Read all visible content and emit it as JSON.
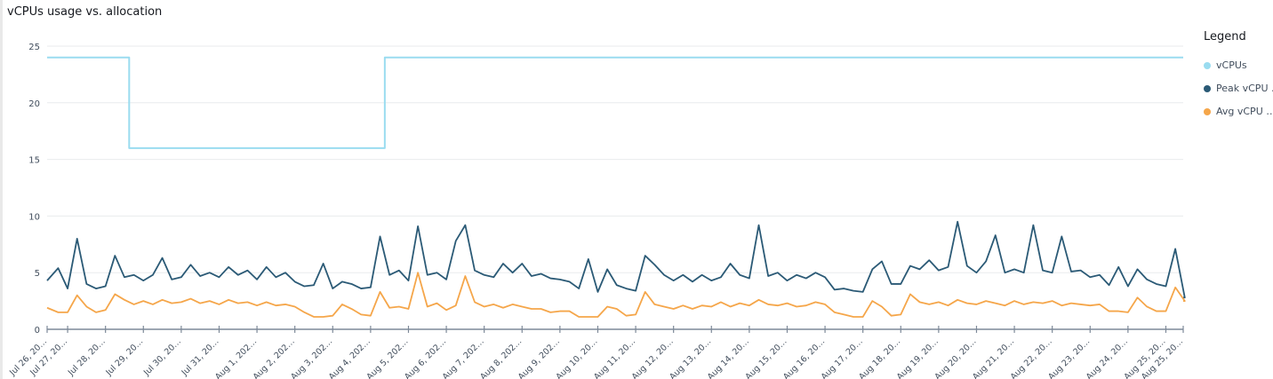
{
  "chart_data": {
    "type": "line",
    "title": "vCPUs usage vs. allocation",
    "xlabel": "",
    "ylabel": "",
    "ylim": [
      0,
      25
    ],
    "yticks": [
      0,
      5,
      10,
      15,
      20,
      25
    ],
    "grid": true,
    "legend": {
      "title": "Legend",
      "placement": "right"
    },
    "xtick_labels": [
      "Jul 26, 20…",
      "Jul 27, 20…",
      "Jul 28, 20…",
      "Jul 29, 20…",
      "Jul 30, 20…",
      "Jul 31, 20…",
      "Aug 1, 202…",
      "Aug 2, 202…",
      "Aug 3, 202…",
      "Aug 4, 202…",
      "Aug 5, 202…",
      "Aug 6, 202…",
      "Aug 7, 202…",
      "Aug 8, 202…",
      "Aug 9, 202…",
      "Aug 10, 20…",
      "Aug 11, 20…",
      "Aug 12, 20…",
      "Aug 13, 20…",
      "Aug 14, 20…",
      "Aug 15, 20…",
      "Aug 16, 20…",
      "Aug 17, 20…",
      "Aug 18, 20…",
      "Aug 19, 20…",
      "Aug 20, 20…",
      "Aug 21, 20…",
      "Aug 22, 20…",
      "Aug 23, 20…",
      "Aug 24, 20…",
      "Aug 25, 20…",
      "Aug 25, 20…"
    ],
    "x": [
      "Jul 26 12:00",
      "Jul 26 18:00",
      "Jul 27 00:00",
      "Jul 27 06:00",
      "Jul 27 12:00",
      "Jul 27 18:00",
      "Jul 28 00:00",
      "Jul 28 06:00",
      "Jul 28 12:00",
      "Jul 28 18:00",
      "Jul 29 00:00",
      "Jul 29 06:00",
      "Jul 29 12:00",
      "Jul 29 18:00",
      "Jul 30 00:00",
      "Jul 30 06:00",
      "Jul 30 12:00",
      "Jul 30 18:00",
      "Jul 31 00:00",
      "Jul 31 06:00",
      "Jul 31 12:00",
      "Jul 31 18:00",
      "Aug 1 00:00",
      "Aug 1 06:00",
      "Aug 1 12:00",
      "Aug 1 18:00",
      "Aug 2 00:00",
      "Aug 2 06:00",
      "Aug 2 12:00",
      "Aug 2 18:00",
      "Aug 3 00:00",
      "Aug 3 06:00",
      "Aug 3 12:00",
      "Aug 3 18:00",
      "Aug 4 00:00",
      "Aug 4 06:00",
      "Aug 4 12:00",
      "Aug 4 18:00",
      "Aug 5 00:00",
      "Aug 5 06:00",
      "Aug 5 12:00",
      "Aug 5 18:00",
      "Aug 6 00:00",
      "Aug 6 06:00",
      "Aug 6 12:00",
      "Aug 6 18:00",
      "Aug 7 00:00",
      "Aug 7 06:00",
      "Aug 7 12:00",
      "Aug 7 18:00",
      "Aug 8 00:00",
      "Aug 8 06:00",
      "Aug 8 12:00",
      "Aug 8 18:00",
      "Aug 9 00:00",
      "Aug 9 06:00",
      "Aug 9 12:00",
      "Aug 9 18:00",
      "Aug 10 00:00",
      "Aug 10 06:00",
      "Aug 10 12:00",
      "Aug 10 18:00",
      "Aug 11 00:00",
      "Aug 11 06:00",
      "Aug 11 12:00",
      "Aug 11 18:00",
      "Aug 12 00:00",
      "Aug 12 06:00",
      "Aug 12 12:00",
      "Aug 12 18:00",
      "Aug 13 00:00",
      "Aug 13 06:00",
      "Aug 13 12:00",
      "Aug 13 18:00",
      "Aug 14 00:00",
      "Aug 14 06:00",
      "Aug 14 12:00",
      "Aug 14 18:00",
      "Aug 15 00:00",
      "Aug 15 06:00",
      "Aug 15 12:00",
      "Aug 15 18:00",
      "Aug 16 00:00",
      "Aug 16 06:00",
      "Aug 16 12:00",
      "Aug 16 18:00",
      "Aug 17 00:00",
      "Aug 17 06:00",
      "Aug 17 12:00",
      "Aug 17 18:00",
      "Aug 18 00:00",
      "Aug 18 06:00",
      "Aug 18 12:00",
      "Aug 18 18:00",
      "Aug 19 00:00",
      "Aug 19 06:00",
      "Aug 19 12:00",
      "Aug 19 18:00",
      "Aug 20 00:00",
      "Aug 20 06:00",
      "Aug 20 12:00",
      "Aug 20 18:00",
      "Aug 21 00:00",
      "Aug 21 06:00",
      "Aug 21 12:00",
      "Aug 21 18:00",
      "Aug 22 00:00",
      "Aug 22 06:00",
      "Aug 22 12:00",
      "Aug 22 18:00",
      "Aug 23 00:00",
      "Aug 23 06:00",
      "Aug 23 12:00",
      "Aug 23 18:00",
      "Aug 24 00:00",
      "Aug 24 06:00",
      "Aug 24 12:00",
      "Aug 24 18:00",
      "Aug 25 00:00",
      "Aug 25 06:00",
      "Aug 25 12:00"
    ],
    "series": [
      {
        "name": "vCPUs",
        "color": "#9adcf0",
        "step": true,
        "values": [
          24,
          24,
          24,
          24,
          24,
          24,
          24,
          24,
          24,
          16,
          16,
          16,
          16,
          16,
          16,
          16,
          16,
          16,
          16,
          16,
          16,
          16,
          16,
          16,
          16,
          16,
          16,
          16,
          16,
          16,
          16,
          16,
          16,
          16,
          16,
          16,
          24,
          24,
          24,
          24,
          24,
          24,
          24,
          24,
          24,
          24,
          24,
          24,
          24,
          24,
          24,
          24,
          24,
          24,
          24,
          24,
          24,
          24,
          24,
          24,
          24,
          24,
          24,
          24,
          24,
          24,
          24,
          24,
          24,
          24,
          24,
          24,
          24,
          24,
          24,
          24,
          24,
          24,
          24,
          24,
          24,
          24,
          24,
          24,
          24,
          24,
          24,
          24,
          24,
          24,
          24,
          24,
          24,
          24,
          24,
          24,
          24,
          24,
          24,
          24,
          24,
          24,
          24,
          24,
          24,
          24,
          24,
          24,
          24,
          24,
          24,
          24,
          24,
          24,
          24,
          24,
          24,
          24,
          24,
          24,
          24
        ]
      },
      {
        "name": "Peak vCPU …",
        "color": "#2b5a76",
        "values": [
          4.3,
          5.4,
          3.6,
          8.0,
          4.0,
          3.6,
          3.8,
          6.5,
          4.6,
          4.8,
          4.3,
          4.8,
          6.3,
          4.4,
          4.6,
          5.7,
          4.7,
          5.0,
          4.6,
          5.5,
          4.8,
          5.2,
          4.4,
          5.5,
          4.6,
          5.0,
          4.2,
          3.8,
          3.9,
          5.8,
          3.6,
          4.2,
          4.0,
          3.6,
          3.7,
          8.2,
          4.8,
          5.2,
          4.3,
          9.1,
          4.8,
          5.0,
          4.4,
          7.8,
          9.2,
          5.2,
          4.8,
          4.6,
          5.8,
          5.0,
          5.8,
          4.7,
          4.9,
          4.5,
          4.4,
          4.2,
          3.6,
          6.2,
          3.3,
          5.3,
          3.9,
          3.6,
          3.4,
          6.5,
          5.7,
          4.8,
          4.3,
          4.8,
          4.2,
          4.8,
          4.3,
          4.6,
          5.8,
          4.8,
          4.5,
          9.2,
          4.7,
          5.0,
          4.3,
          4.8,
          4.5,
          5.0,
          4.6,
          3.5,
          3.6,
          3.4,
          3.3,
          5.3,
          6.0,
          4.0,
          4.0,
          5.6,
          5.3,
          6.1,
          5.2,
          5.5,
          9.5,
          5.6,
          5.0,
          6.0,
          8.3,
          5.0,
          5.3,
          5.0,
          9.2,
          5.2,
          5.0,
          8.2,
          5.1,
          5.2,
          4.6,
          4.8,
          3.9,
          5.5,
          3.8,
          5.3,
          4.4,
          4.0,
          3.8,
          7.1,
          2.8
        ]
      },
      {
        "name": "Avg vCPU …",
        "color": "#f5a64a",
        "values": [
          1.9,
          1.5,
          1.5,
          3.0,
          2.0,
          1.5,
          1.7,
          3.1,
          2.6,
          2.2,
          2.5,
          2.2,
          2.6,
          2.3,
          2.4,
          2.7,
          2.3,
          2.5,
          2.2,
          2.6,
          2.3,
          2.4,
          2.1,
          2.4,
          2.1,
          2.2,
          2.0,
          1.5,
          1.1,
          1.1,
          1.2,
          2.2,
          1.8,
          1.3,
          1.2,
          3.3,
          1.9,
          2.0,
          1.8,
          5.0,
          2.0,
          2.3,
          1.7,
          2.1,
          4.7,
          2.4,
          2.0,
          2.2,
          1.9,
          2.2,
          2.0,
          1.8,
          1.8,
          1.5,
          1.6,
          1.6,
          1.1,
          1.1,
          1.1,
          2.0,
          1.8,
          1.2,
          1.3,
          3.3,
          2.2,
          2.0,
          1.8,
          2.1,
          1.8,
          2.1,
          2.0,
          2.4,
          2.0,
          2.3,
          2.1,
          2.6,
          2.2,
          2.1,
          2.3,
          2.0,
          2.1,
          2.4,
          2.2,
          1.5,
          1.3,
          1.1,
          1.1,
          2.5,
          2.0,
          1.2,
          1.3,
          3.1,
          2.4,
          2.2,
          2.4,
          2.1,
          2.6,
          2.3,
          2.2,
          2.5,
          2.3,
          2.1,
          2.5,
          2.2,
          2.4,
          2.3,
          2.5,
          2.1,
          2.3,
          2.2,
          2.1,
          2.2,
          1.6,
          1.6,
          1.5,
          2.8,
          2.0,
          1.6,
          1.6,
          3.7,
          2.5
        ]
      }
    ]
  }
}
